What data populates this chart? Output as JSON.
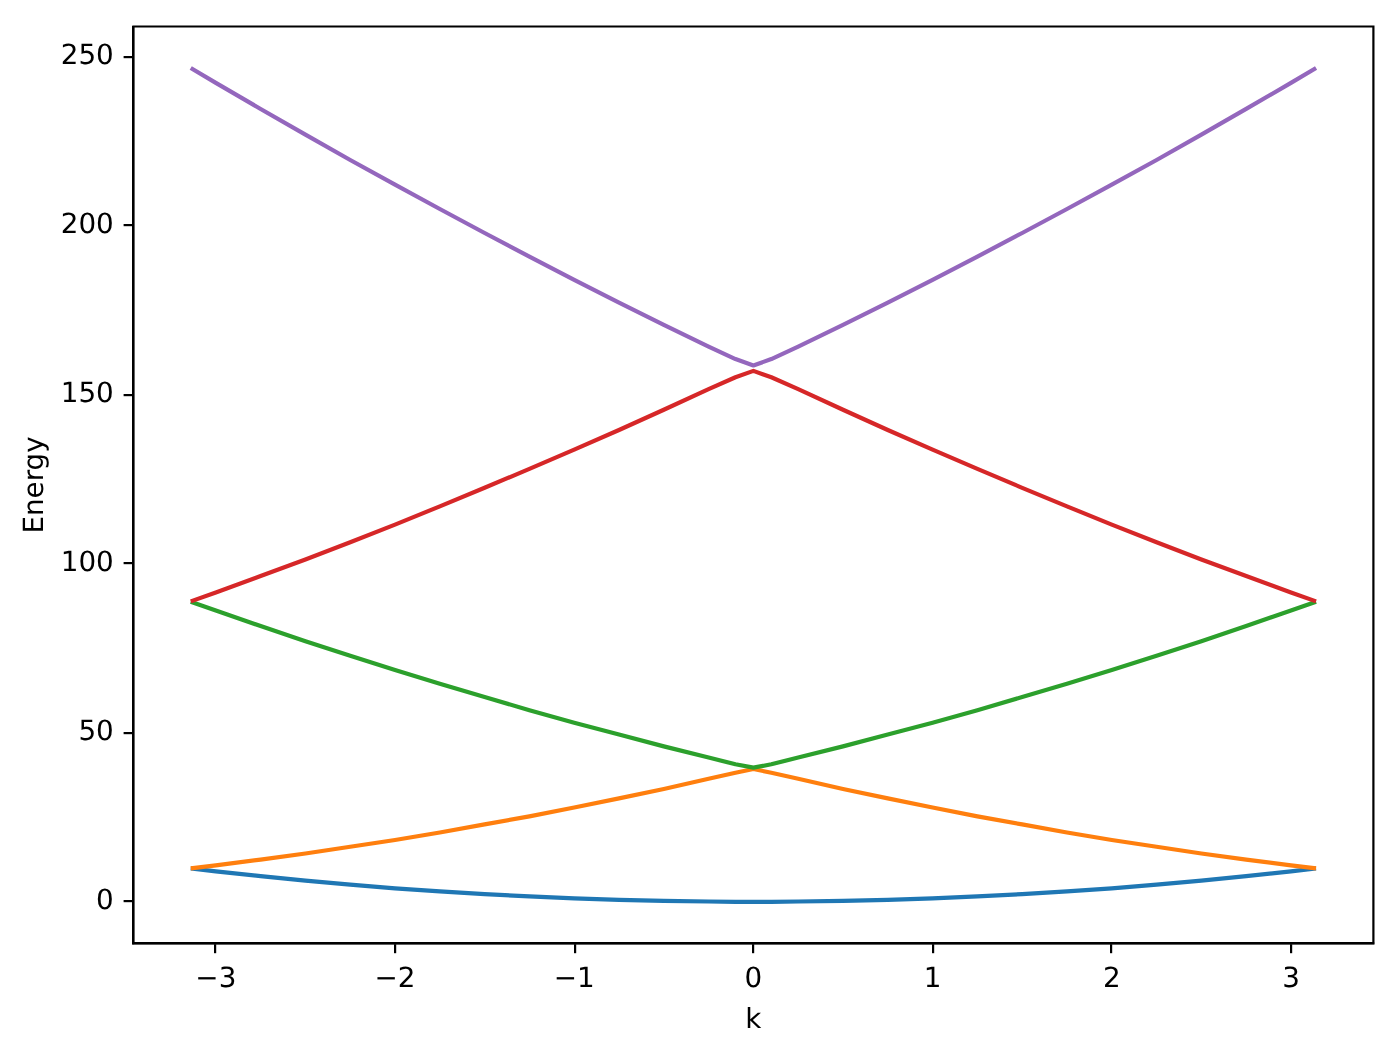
{
  "chart_data": {
    "type": "line",
    "xlabel": "k",
    "ylabel": "Energy",
    "x": [
      -3.14,
      -3.0,
      -2.75,
      -2.5,
      -2.25,
      -2.0,
      -1.75,
      -1.5,
      -1.25,
      -1.0,
      -0.75,
      -0.5,
      -0.25,
      -0.1,
      0,
      0.1,
      0.25,
      0.5,
      0.75,
      1.0,
      1.25,
      1.5,
      1.75,
      2.0,
      2.25,
      2.5,
      2.75,
      3.0,
      3.14
    ],
    "series": [
      {
        "color": "#1f77b4",
        "values": [
          9.9,
          9.0,
          7.6,
          6.3,
          5.1,
          4.0,
          3.1,
          2.3,
          1.6,
          1.0,
          0.6,
          0.3,
          0.1,
          0.0,
          0.0,
          0.0,
          0.1,
          0.3,
          0.6,
          1.0,
          1.6,
          2.3,
          3.1,
          4.0,
          5.1,
          6.3,
          7.6,
          9.0,
          9.9
        ]
      },
      {
        "color": "#ff7f0e",
        "values": [
          9.9,
          10.8,
          12.5,
          14.3,
          16.3,
          18.3,
          20.5,
          22.9,
          25.3,
          27.9,
          30.6,
          33.4,
          36.4,
          38.2,
          39.3,
          38.2,
          36.4,
          33.4,
          30.6,
          27.9,
          25.3,
          22.9,
          20.5,
          18.3,
          16.3,
          14.3,
          12.5,
          10.8,
          9.9
        ]
      },
      {
        "color": "#2ca02c",
        "values": [
          88.8,
          86.2,
          81.6,
          77.1,
          72.8,
          68.6,
          64.5,
          60.6,
          56.7,
          53.0,
          49.5,
          46.0,
          42.7,
          40.7,
          39.7,
          40.7,
          42.7,
          46.0,
          49.5,
          53.0,
          56.7,
          60.6,
          64.5,
          68.6,
          72.8,
          77.1,
          81.6,
          86.2,
          88.8
        ]
      },
      {
        "color": "#d62728",
        "values": [
          88.9,
          91.5,
          96.4,
          101.3,
          106.4,
          111.6,
          117.0,
          122.5,
          128.1,
          133.8,
          139.6,
          145.6,
          151.7,
          155.2,
          157.1,
          155.2,
          151.7,
          145.6,
          139.6,
          133.8,
          128.1,
          122.5,
          117.0,
          111.6,
          106.4,
          101.3,
          96.4,
          91.5,
          88.9
        ]
      },
      {
        "color": "#9467bd",
        "values": [
          246.7,
          242.3,
          234.6,
          227.0,
          219.5,
          212.2,
          205.0,
          197.9,
          190.9,
          184.0,
          177.3,
          170.7,
          164.3,
          160.6,
          158.7,
          160.6,
          164.3,
          170.7,
          177.3,
          184.0,
          190.9,
          197.9,
          205.0,
          212.2,
          219.5,
          227.0,
          234.6,
          242.3,
          246.7
        ]
      }
    ],
    "xlim": [
      -3.46,
      3.46
    ],
    "ylim": [
      -12.3,
      259
    ],
    "xticks": [
      {
        "value": -3,
        "label": "−3"
      },
      {
        "value": -2,
        "label": "−2"
      },
      {
        "value": -1,
        "label": "−1"
      },
      0,
      1,
      2,
      3
    ],
    "yticks": [
      0,
      50,
      100,
      150,
      200,
      250
    ]
  }
}
